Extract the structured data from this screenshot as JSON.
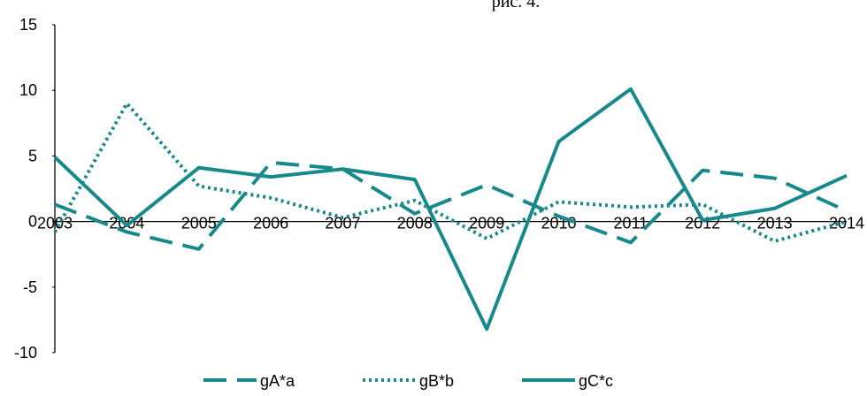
{
  "chart_data": {
    "type": "line",
    "title": "рис. 4.",
    "categories": [
      "2003",
      "2004",
      "2005",
      "2006",
      "2007",
      "2008",
      "2009",
      "2010",
      "2011",
      "2012",
      "2013",
      "2014"
    ],
    "series": [
      {
        "name": "gA*a",
        "color": "#17898b",
        "dash": "dashed",
        "values": [
          1.3,
          -0.8,
          -2.1,
          4.5,
          4.0,
          0.6,
          2.8,
          0.4,
          -1.6,
          3.9,
          3.3,
          0.8
        ]
      },
      {
        "name": "gB*b",
        "color": "#17898b",
        "dash": "dotted",
        "values": [
          -0.8,
          9.0,
          2.7,
          1.8,
          0.3,
          1.6,
          -1.3,
          1.5,
          1.1,
          1.3,
          -1.5,
          0.0
        ]
      },
      {
        "name": "gC*c",
        "color": "#17898b",
        "dash": "solid",
        "values": [
          4.9,
          -0.3,
          4.1,
          3.4,
          4.0,
          3.2,
          -8.2,
          6.1,
          10.1,
          0.1,
          1.0,
          3.5
        ]
      }
    ],
    "ylim": [
      -10,
      15
    ],
    "yticks": [
      -10,
      -5,
      0,
      5,
      10,
      15
    ],
    "grid": false,
    "legend": "bottom"
  }
}
